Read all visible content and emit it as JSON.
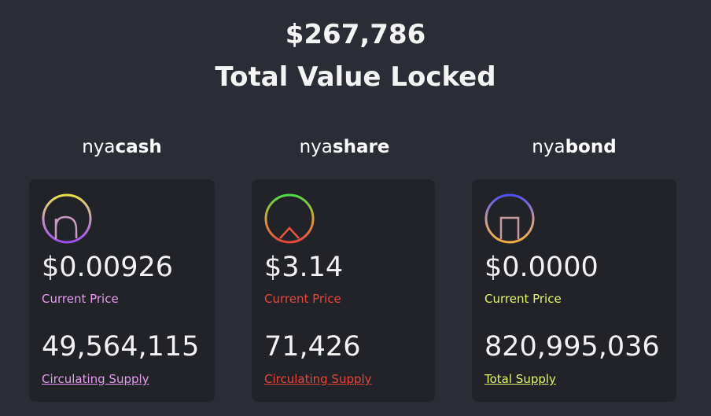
{
  "header": {
    "tvl_value": "$267,786",
    "tvl_label": "Total Value Locked"
  },
  "tokens": [
    {
      "prefix": "nya",
      "name": "cash",
      "price": "$0.00926",
      "price_label": "Current Price",
      "supply": "49,564,115",
      "supply_label": "Circulating Supply",
      "accent": "#e59cf0",
      "icon": "nyacash-logo-icon"
    },
    {
      "prefix": "nya",
      "name": "share",
      "price": "$3.14",
      "price_label": "Current Price",
      "supply": "71,426",
      "supply_label": "Circulating Supply",
      "accent": "#e5453c",
      "icon": "nyashare-logo-icon"
    },
    {
      "prefix": "nya",
      "name": "bond",
      "price": "$0.0000",
      "price_label": "Current Price",
      "supply": "820,995,036",
      "supply_label": "Total Supply",
      "accent": "#e4f56c",
      "icon": "nyabond-logo-icon"
    }
  ]
}
